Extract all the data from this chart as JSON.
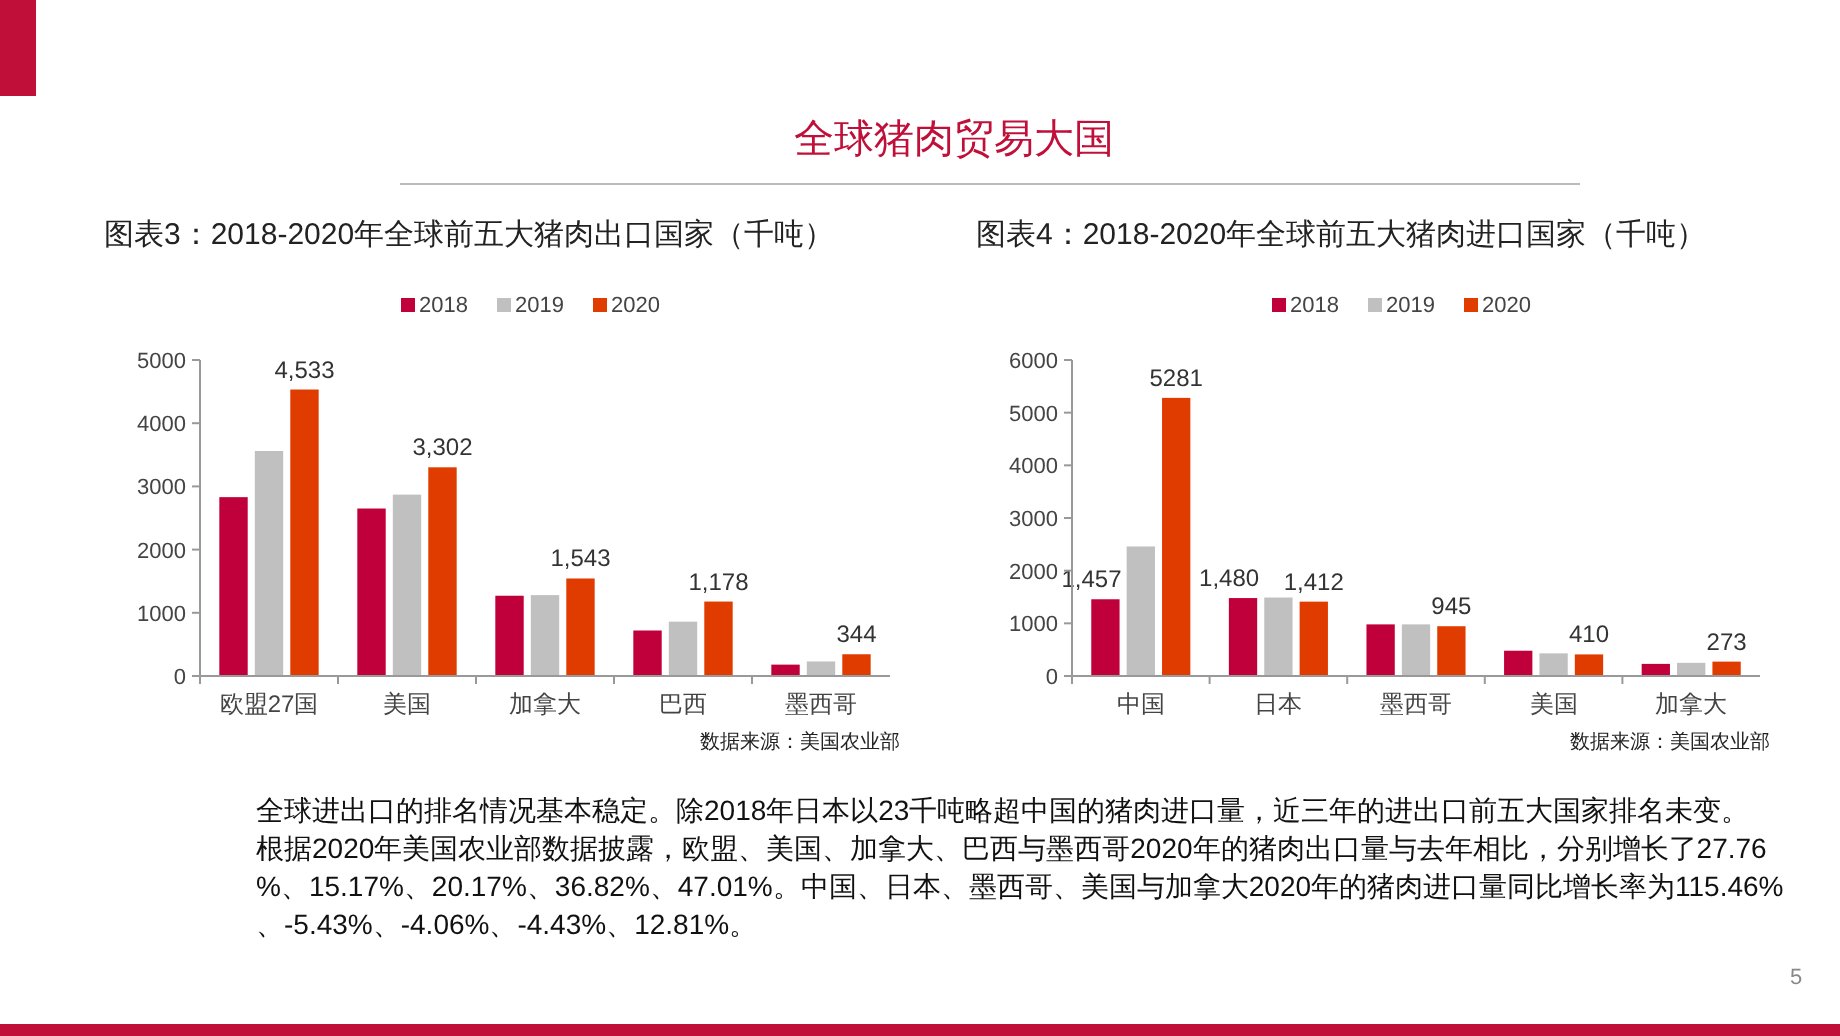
{
  "chart_data": [
    {
      "type": "bar",
      "title": "图表3：2018-2020年全球前五大猪肉出口国家（千吨）",
      "categories": [
        "欧盟27国",
        "美国",
        "加拿大",
        "巴西",
        "墨西哥"
      ],
      "series": [
        {
          "name": "2018",
          "color": "#c0003a",
          "values": [
            2830,
            2650,
            1270,
            720,
            180
          ]
        },
        {
          "name": "2019",
          "color": "#c0c0c0",
          "values": [
            3560,
            2870,
            1280,
            860,
            230
          ]
        },
        {
          "name": "2020",
          "color": "#e03c00",
          "values": [
            4533,
            3302,
            1543,
            1178,
            344
          ],
          "value_labels": [
            "4,533",
            "3,302",
            "1,543",
            "1,178",
            "344"
          ]
        }
      ],
      "ylim": [
        0,
        5000
      ],
      "yticks": [
        0,
        1000,
        2000,
        3000,
        4000,
        5000
      ],
      "grid": false,
      "legend": "top",
      "annotations": [
        "数据来源：美国农业部",
        "全球猪肉贸易大国",
        "全球进出口的排名情况基本稳定。除2018年日本以23千吨略超中国的猪肉进口量，近三年的进出口前五大国家排名未变。",
        "根据2020年美国农业部数据披露，欧盟、美国、加拿大、巴西与墨西哥2020年的猪肉出口量与去年相比，分别增长了27.76%、15.17%、20.17%、36.82%、47.01%。中国、日本、墨西哥、美国与加拿大2020年的猪肉进口量同比增长率为115.46%、-5.43%、-4.06%、-4.43%、12.81%。",
        "5"
      ]
    },
    {
      "type": "bar",
      "title": "图表4：2018-2020年全球前五大猪肉进口国家（千吨）",
      "categories": [
        "中国",
        "日本",
        "墨西哥",
        "美国",
        "加拿大"
      ],
      "series": [
        {
          "name": "2018",
          "color": "#c0003a",
          "values": [
            1457,
            1480,
            980,
            480,
            230
          ],
          "value_labels": [
            "1,457",
            "1,480",
            null,
            null,
            null
          ]
        },
        {
          "name": "2019",
          "color": "#c0c0c0",
          "values": [
            2460,
            1490,
            980,
            430,
            250
          ]
        },
        {
          "name": "2020",
          "color": "#e03c00",
          "values": [
            5281,
            1412,
            945,
            410,
            273
          ],
          "value_labels": [
            "5281",
            "1,412",
            "945",
            "410",
            "273"
          ]
        }
      ],
      "ylim": [
        0,
        6000
      ],
      "yticks": [
        0,
        1000,
        2000,
        3000,
        4000,
        5000,
        6000
      ],
      "grid": false,
      "legend": "top",
      "annotations": [
        "数据来源：美国农业部"
      ]
    }
  ]
}
